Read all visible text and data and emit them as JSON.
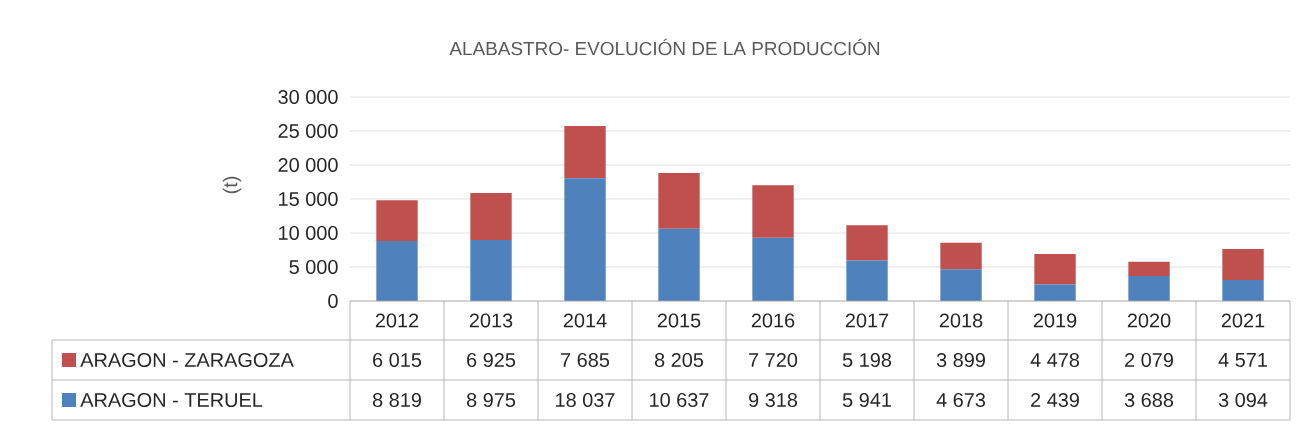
{
  "chart_data": {
    "type": "bar",
    "stacked": true,
    "title": "ALABASTRO- EVOLUCIÓN  DE LA PRODUCCIÓN",
    "ylabel": "(t)",
    "categories": [
      "2012",
      "2013",
      "2014",
      "2015",
      "2016",
      "2017",
      "2018",
      "2019",
      "2020",
      "2021"
    ],
    "series": [
      {
        "name": "ARAGON - TERUEL",
        "color": "#4f81bd",
        "values": [
          8819,
          8975,
          18037,
          10637,
          9318,
          5941,
          4673,
          2439,
          3688,
          3094
        ],
        "value_labels": [
          "8 819",
          "8 975",
          "18 037",
          "10 637",
          "9 318",
          "5 941",
          "4 673",
          "2 439",
          "3 688",
          "3 094"
        ]
      },
      {
        "name": "ARAGON - ZARAGOZA",
        "color": "#c0504d",
        "values": [
          6015,
          6925,
          7685,
          8205,
          7720,
          5198,
          3899,
          4478,
          2079,
          4571
        ],
        "value_labels": [
          "6 015",
          "6 925",
          "7 685",
          "8 205",
          "7 720",
          "5 198",
          "3 899",
          "4 478",
          "2 079",
          "4 571"
        ]
      }
    ],
    "ylim": [
      0,
      30000
    ],
    "yticks": [
      {
        "value": 0,
        "label": "0"
      },
      {
        "value": 5000,
        "label": "5 000"
      },
      {
        "value": 10000,
        "label": "10 000"
      },
      {
        "value": 15000,
        "label": "15 000"
      },
      {
        "value": 20000,
        "label": "20 000"
      },
      {
        "value": 25000,
        "label": "25 000"
      },
      {
        "value": 30000,
        "label": "30 000"
      }
    ],
    "grid": "y",
    "legend": "bottom"
  }
}
